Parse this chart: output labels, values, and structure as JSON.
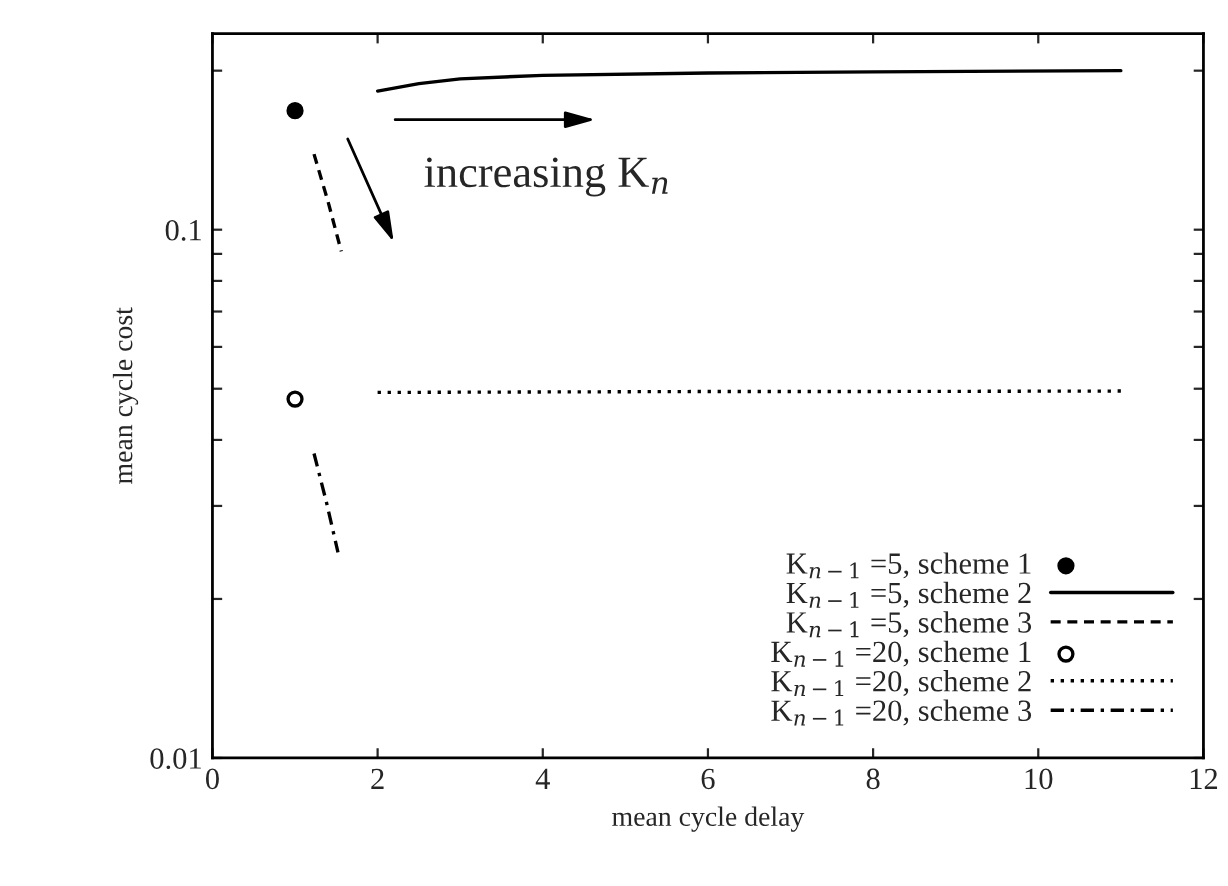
{
  "chart_data": {
    "type": "line",
    "xlabel": "mean cycle delay",
    "ylabel": "mean cycle cost",
    "log": "y",
    "xlim": [
      0,
      12
    ],
    "xticks": [
      0,
      2,
      4,
      6,
      8,
      10,
      12
    ],
    "ylim": [
      0.01,
      0.235
    ],
    "yticks": [
      0.01,
      {
        "value": 0.02,
        "label": null
      },
      {
        "value": 0.03,
        "label": null
      },
      {
        "value": 0.04,
        "label": null
      },
      {
        "value": 0.05,
        "label": null
      },
      {
        "value": 0.06,
        "label": null
      },
      {
        "value": 0.07,
        "label": null
      },
      {
        "value": 0.08,
        "label": null
      },
      {
        "value": 0.09,
        "label": null
      },
      0.1,
      {
        "value": 0.2,
        "label": null
      }
    ],
    "grid": false,
    "legend": "bottom right",
    "annotations": [
      "increasing K$_{n}$"
    ],
    "series": [
      {
        "name": "K$_{n−1}$ =5, scheme 1",
        "type": "scatter",
        "marker": "circle",
        "color": "#000000",
        "x": [
          1.0
        ],
        "values": [
          0.168
        ]
      },
      {
        "name": "K$_{n−1}$ =5, scheme 2",
        "type": "line",
        "line_style": "solid",
        "color": "#000000",
        "x": [
          2,
          2.5,
          3,
          4,
          6,
          8,
          11
        ],
        "values": [
          0.183,
          0.189,
          0.193,
          0.196,
          0.198,
          0.199,
          0.2
        ]
      },
      {
        "name": "K$_{n−1}$ =5, scheme 3",
        "type": "line",
        "line_style": "dashed",
        "color": "#000000",
        "x": [
          1.23,
          1.4,
          1.56
        ],
        "values": [
          0.139,
          0.113,
          0.091
        ]
      },
      {
        "name": "K$_{n−1}$ =20, scheme 1",
        "type": "scatter",
        "marker": "open circle",
        "color": "#000000",
        "x": [
          1.0
        ],
        "values": [
          0.0478
        ]
      },
      {
        "name": "K$_{n−1}$ =20, scheme 2",
        "type": "line",
        "line_style": "dotted",
        "color": "#000000",
        "x": [
          2,
          4,
          6,
          8,
          11
        ],
        "values": [
          0.0492,
          0.0493,
          0.0494,
          0.0494,
          0.0495
        ]
      },
      {
        "name": "K$_{n−1}$ =20, scheme 3",
        "type": "line",
        "line_style": "dashdot",
        "color": "#000000",
        "x": [
          1.23,
          1.38,
          1.52
        ],
        "values": [
          0.0377,
          0.0305,
          0.0245
        ]
      }
    ]
  }
}
